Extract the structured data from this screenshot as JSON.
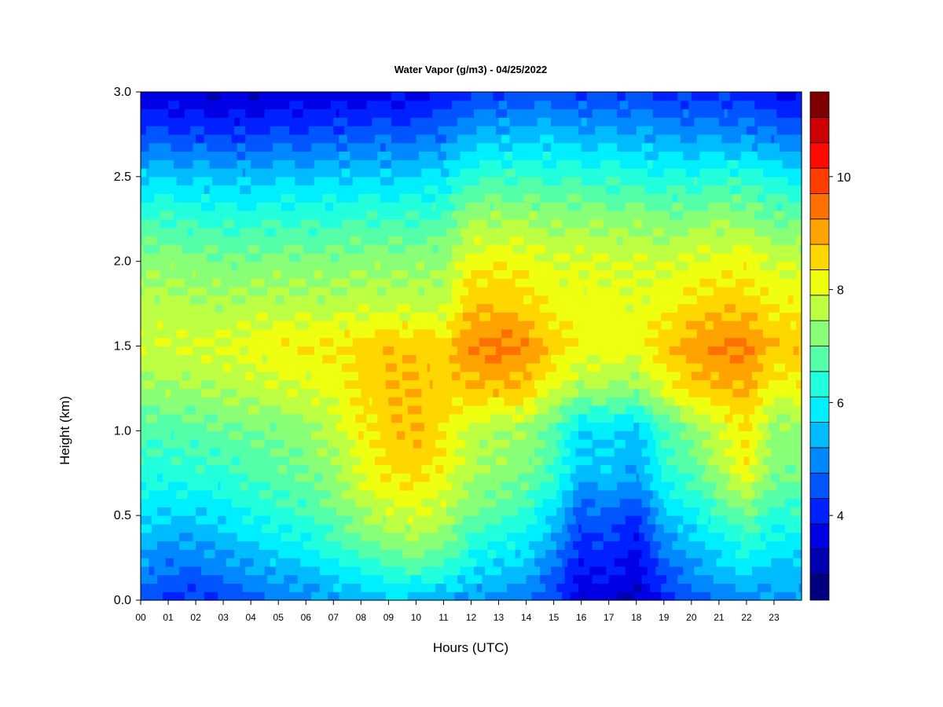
{
  "chart_data": {
    "type": "heatmap",
    "title": "Water Vapor (g/m3) - 04/25/2022",
    "xlabel": "Hours (UTC)",
    "ylabel": "Height (km)",
    "x_ticks": [
      "00",
      "01",
      "02",
      "03",
      "04",
      "05",
      "06",
      "07",
      "08",
      "09",
      "10",
      "11",
      "12",
      "13",
      "14",
      "15",
      "16",
      "17",
      "18",
      "19",
      "20",
      "21",
      "22",
      "23"
    ],
    "y_ticks": [
      "0.0",
      "0.5",
      "1.0",
      "1.5",
      "2.0",
      "2.5",
      "3.0"
    ],
    "xlim": [
      0,
      24
    ],
    "ylim": [
      0,
      3.0
    ],
    "colorbar": {
      "min": 2.5,
      "max": 11.5,
      "step": 0.5,
      "ticks": [
        "4",
        "6",
        "8",
        "10"
      ],
      "colors": [
        "#00007f",
        "#0000b2",
        "#0000e5",
        "#0021ff",
        "#0055ff",
        "#0088ff",
        "#00bcff",
        "#00efff",
        "#21ffdd",
        "#55ffaa",
        "#88ff77",
        "#bcff43",
        "#efff10",
        "#ffd600",
        "#ffa300",
        "#ff7000",
        "#ff3d00",
        "#ff0a00",
        "#cc0000",
        "#7f0000"
      ]
    },
    "grid": {
      "hours": [
        0,
        1,
        2,
        3,
        4,
        5,
        6,
        7,
        8,
        9,
        10,
        11,
        12,
        13,
        14,
        15,
        16,
        17,
        18,
        19,
        20,
        21,
        22,
        23
      ],
      "heights_km": [
        0.0,
        0.25,
        0.5,
        0.75,
        1.0,
        1.25,
        1.5,
        1.75,
        2.0,
        2.25,
        2.5,
        2.75,
        3.0
      ],
      "values": [
        [
          4.8,
          5.5,
          6.2,
          6.8,
          7.2,
          7.8,
          8.4,
          8.2,
          7.8,
          7.0,
          6.0,
          4.6,
          3.6
        ],
        [
          4.4,
          5.2,
          6.0,
          6.7,
          7.2,
          7.9,
          8.5,
          8.2,
          7.8,
          7.0,
          6.0,
          4.6,
          3.6
        ],
        [
          4.4,
          5.2,
          6.0,
          6.8,
          7.3,
          8.0,
          8.5,
          8.1,
          7.7,
          6.9,
          5.9,
          4.5,
          3.5
        ],
        [
          4.6,
          5.4,
          6.2,
          6.9,
          7.4,
          8.1,
          8.6,
          8.1,
          7.6,
          6.8,
          5.8,
          4.4,
          3.5
        ],
        [
          4.8,
          5.7,
          6.5,
          7.1,
          7.5,
          8.2,
          8.7,
          8.2,
          7.6,
          6.8,
          5.8,
          4.5,
          3.5
        ],
        [
          5.0,
          6.0,
          6.8,
          7.3,
          7.6,
          8.4,
          8.9,
          8.2,
          7.7,
          6.9,
          5.9,
          4.6,
          3.6
        ],
        [
          5.2,
          6.2,
          7.0,
          7.5,
          7.8,
          8.5,
          9.0,
          8.2,
          7.7,
          6.9,
          5.9,
          4.6,
          3.6
        ],
        [
          5.5,
          6.6,
          7.4,
          7.9,
          8.2,
          8.7,
          9.0,
          8.2,
          7.7,
          6.9,
          6.0,
          4.7,
          3.6
        ],
        [
          5.7,
          7.0,
          7.9,
          8.6,
          8.9,
          9.1,
          9.2,
          8.3,
          7.8,
          7.0,
          6.0,
          4.8,
          3.7
        ],
        [
          5.9,
          7.3,
          8.3,
          9.0,
          9.3,
          9.4,
          9.4,
          8.3,
          7.8,
          7.0,
          6.0,
          4.8,
          3.8
        ],
        [
          5.8,
          7.5,
          8.5,
          9.2,
          9.5,
          9.5,
          9.4,
          8.3,
          7.8,
          7.0,
          6.0,
          4.8,
          3.8
        ],
        [
          5.6,
          7.2,
          8.2,
          8.8,
          9.1,
          9.2,
          9.2,
          8.3,
          7.9,
          7.2,
          6.2,
          5.0,
          4.0
        ],
        [
          5.4,
          6.5,
          7.5,
          8.1,
          8.3,
          9.4,
          10.0,
          9.4,
          8.8,
          7.9,
          6.8,
          5.5,
          4.3
        ],
        [
          5.2,
          6.2,
          7.2,
          7.8,
          8.1,
          9.5,
          10.2,
          9.4,
          8.9,
          8.0,
          7.0,
          5.7,
          4.5
        ],
        [
          5.0,
          6.0,
          6.8,
          7.6,
          7.9,
          9.3,
          10.0,
          9.2,
          8.8,
          8.0,
          7.0,
          5.8,
          4.6
        ],
        [
          4.5,
          5.2,
          6.0,
          7.0,
          7.2,
          8.5,
          9.3,
          8.8,
          8.5,
          7.8,
          6.9,
          5.8,
          4.6
        ],
        [
          3.6,
          4.1,
          4.7,
          5.8,
          6.0,
          8.0,
          8.9,
          8.7,
          8.6,
          7.9,
          6.9,
          5.7,
          4.5
        ],
        [
          3.7,
          4.3,
          4.9,
          5.9,
          6.1,
          8.0,
          8.8,
          8.7,
          8.5,
          7.8,
          6.8,
          5.6,
          4.5
        ],
        [
          3.4,
          3.8,
          4.4,
          5.5,
          5.8,
          7.8,
          8.8,
          8.6,
          8.5,
          7.8,
          6.8,
          5.6,
          4.6
        ],
        [
          4.2,
          5.0,
          5.8,
          6.7,
          7.0,
          8.6,
          9.3,
          8.8,
          8.4,
          7.6,
          6.6,
          5.4,
          4.3
        ],
        [
          4.8,
          5.6,
          6.3,
          7.2,
          7.6,
          9.2,
          9.8,
          9.1,
          8.6,
          7.8,
          6.7,
          5.4,
          4.3
        ],
        [
          5.1,
          6.0,
          6.9,
          8.0,
          8.4,
          9.5,
          10.1,
          9.3,
          8.7,
          7.9,
          6.8,
          5.4,
          4.3
        ],
        [
          5.2,
          6.4,
          7.5,
          8.8,
          9.1,
          9.6,
          10.1,
          9.3,
          8.8,
          7.9,
          6.8,
          5.3,
          4.2
        ],
        [
          5.4,
          6.0,
          6.8,
          7.6,
          7.8,
          8.8,
          9.4,
          8.9,
          8.4,
          7.5,
          6.4,
          5.0,
          3.9
        ]
      ]
    }
  }
}
